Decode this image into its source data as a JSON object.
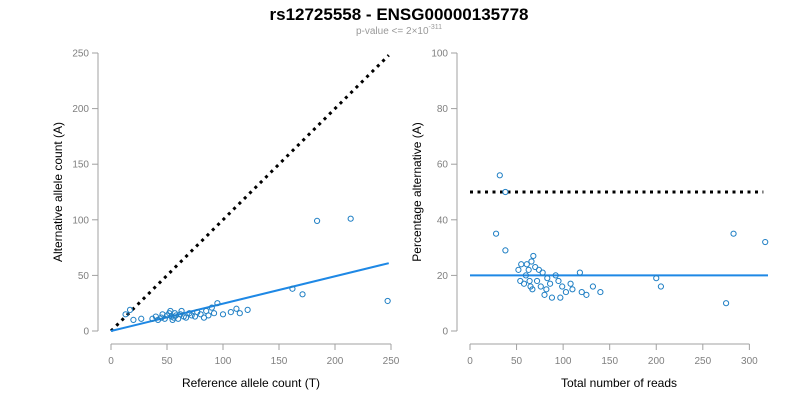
{
  "title": "rs12725558 - ENSG00000135778",
  "subtitle": {
    "prefix": "p-value <= 2",
    "times": "×",
    "base": "10",
    "exponent": "-311"
  },
  "colors": {
    "points": "#1f7fc4",
    "fit_line": "#1e88e5",
    "reference_line": "#000000",
    "axis": "#a0a0a0",
    "tick_labels": "#7f7f7f",
    "subtitle": "#999999"
  },
  "chart_data": [
    {
      "type": "scatter",
      "xlabel": "Reference allele count (T)",
      "ylabel": "Alternative allele count (A)",
      "xlim": [
        0,
        250
      ],
      "ylim": [
        0,
        250
      ],
      "xticks": [
        0,
        50,
        100,
        150,
        200,
        250
      ],
      "yticks": [
        0,
        50,
        100,
        150,
        200,
        250
      ],
      "grid": false,
      "points": [
        [
          13,
          15
        ],
        [
          17,
          19
        ],
        [
          20,
          10
        ],
        [
          27,
          11
        ],
        [
          37,
          11
        ],
        [
          40,
          13
        ],
        [
          42,
          10
        ],
        [
          45,
          12
        ],
        [
          46,
          15
        ],
        [
          48,
          11
        ],
        [
          50,
          14
        ],
        [
          52,
          16
        ],
        [
          53,
          18
        ],
        [
          54,
          13
        ],
        [
          55,
          10
        ],
        [
          56,
          12
        ],
        [
          57,
          16
        ],
        [
          58,
          14
        ],
        [
          60,
          11
        ],
        [
          62,
          15
        ],
        [
          63,
          18
        ],
        [
          65,
          13
        ],
        [
          67,
          12
        ],
        [
          70,
          16
        ],
        [
          72,
          14
        ],
        [
          75,
          13
        ],
        [
          77,
          17
        ],
        [
          80,
          15
        ],
        [
          83,
          12
        ],
        [
          85,
          18
        ],
        [
          87,
          14
        ],
        [
          90,
          21
        ],
        [
          92,
          16
        ],
        [
          95,
          25
        ],
        [
          100,
          15
        ],
        [
          107,
          17
        ],
        [
          112,
          20
        ],
        [
          115,
          16
        ],
        [
          122,
          19
        ],
        [
          162,
          38
        ],
        [
          171,
          33
        ],
        [
          184,
          99
        ],
        [
          214,
          101
        ],
        [
          247,
          27
        ]
      ],
      "reference_line": {
        "style": "dotted",
        "x": [
          0,
          248
        ],
        "y": [
          0,
          248
        ]
      },
      "fit_line": {
        "style": "solid",
        "x": [
          0,
          248
        ],
        "y": [
          0,
          61
        ]
      }
    },
    {
      "type": "scatter",
      "xlabel": "Total number of reads",
      "ylabel": "Percentage alternative (A)",
      "xlim": [
        0,
        320
      ],
      "ylim": [
        0,
        100
      ],
      "xticks": [
        0,
        50,
        100,
        150,
        200,
        250,
        300
      ],
      "yticks": [
        0,
        20,
        40,
        60,
        80,
        100
      ],
      "grid": false,
      "points": [
        [
          28,
          35
        ],
        [
          32,
          56
        ],
        [
          38,
          50
        ],
        [
          38,
          29
        ],
        [
          52,
          22
        ],
        [
          54,
          18
        ],
        [
          55,
          24
        ],
        [
          58,
          17
        ],
        [
          60,
          20
        ],
        [
          61,
          24
        ],
        [
          63,
          22
        ],
        [
          64,
          18
        ],
        [
          65,
          16
        ],
        [
          66,
          25
        ],
        [
          67,
          15
        ],
        [
          68,
          27
        ],
        [
          70,
          23
        ],
        [
          72,
          18
        ],
        [
          74,
          22
        ],
        [
          76,
          16
        ],
        [
          78,
          21
        ],
        [
          80,
          13
        ],
        [
          82,
          15
        ],
        [
          83,
          19
        ],
        [
          86,
          17
        ],
        [
          88,
          12
        ],
        [
          92,
          20
        ],
        [
          95,
          18
        ],
        [
          97,
          12
        ],
        [
          99,
          16
        ],
        [
          103,
          14
        ],
        [
          108,
          17
        ],
        [
          110,
          15
        ],
        [
          118,
          21
        ],
        [
          120,
          14
        ],
        [
          125,
          13
        ],
        [
          132,
          16
        ],
        [
          140,
          14
        ],
        [
          200,
          19
        ],
        [
          205,
          16
        ],
        [
          275,
          10
        ],
        [
          283,
          35
        ],
        [
          317,
          32
        ]
      ],
      "reference_line": {
        "style": "dotted",
        "x": [
          0,
          315
        ],
        "y": [
          50,
          50
        ]
      },
      "fit_line": {
        "style": "solid",
        "x": [
          0,
          320
        ],
        "y": [
          20,
          20
        ]
      }
    }
  ]
}
